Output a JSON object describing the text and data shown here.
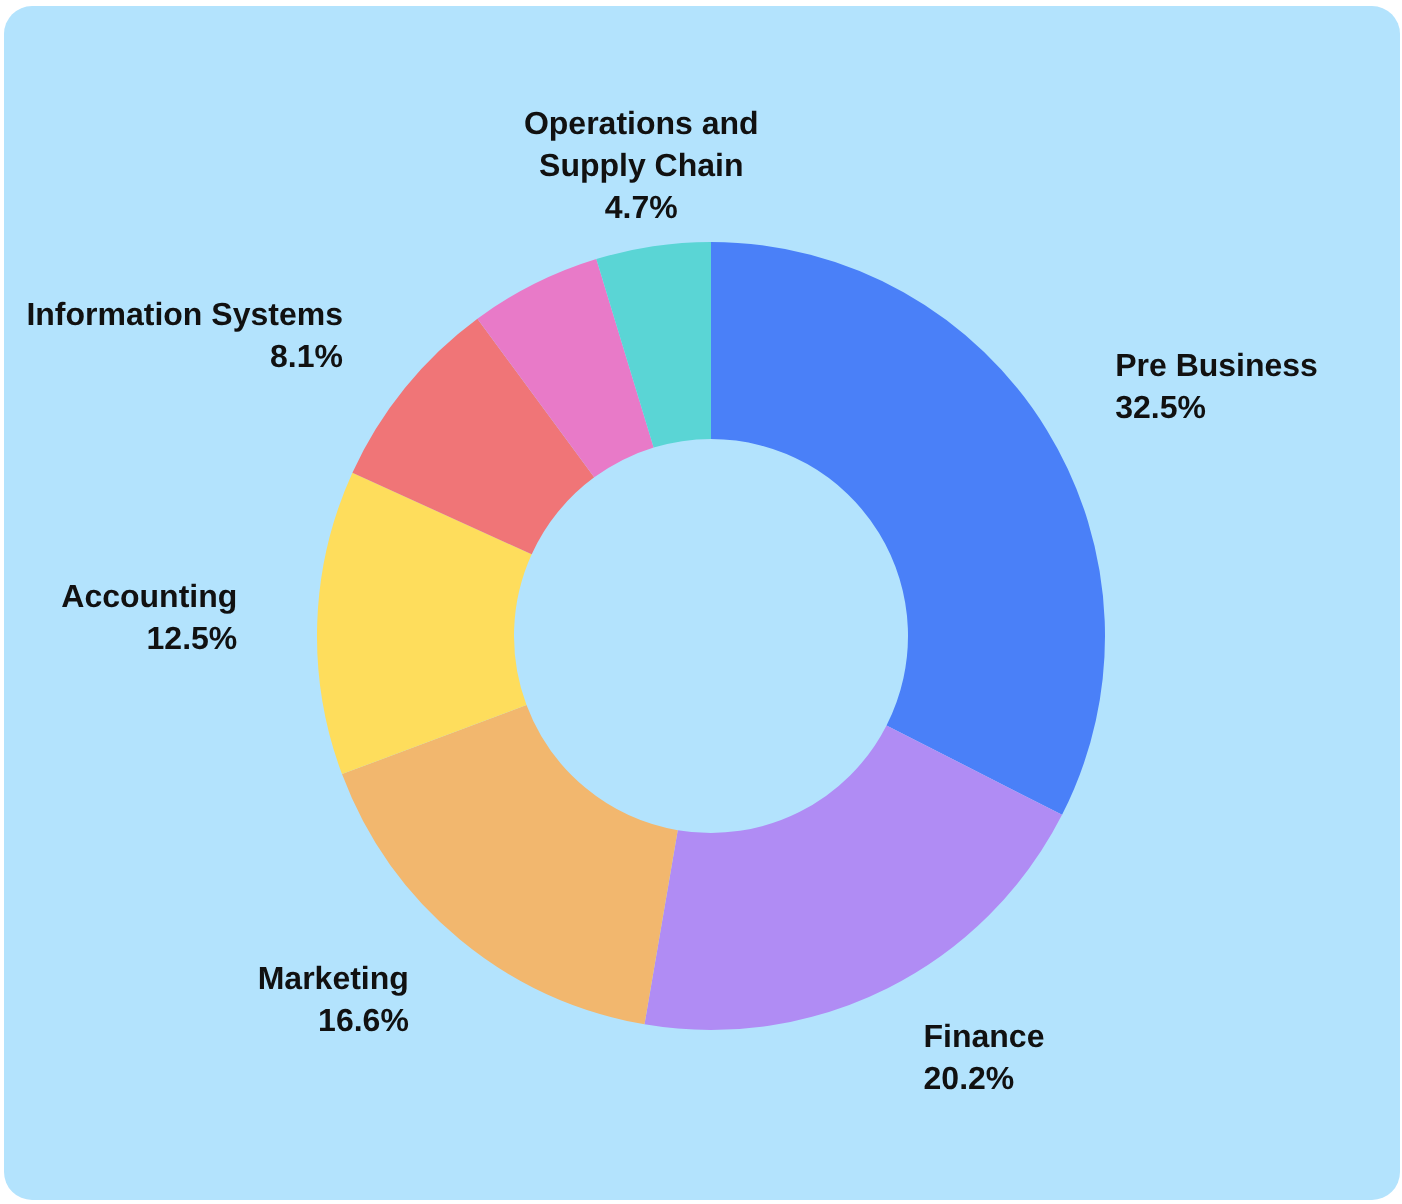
{
  "chart_data": {
    "type": "donut",
    "categories": [
      "Pre Business",
      "Finance",
      "Marketing",
      "Accounting",
      "Information Systems",
      null,
      "Operations and Supply Chain"
    ],
    "values": [
      32.5,
      20.2,
      16.6,
      12.5,
      8.1,
      5.4,
      4.7
    ],
    "value_labels": [
      "32.5%",
      "20.2%",
      "16.6%",
      "12.5%",
      "8.1%",
      null,
      "4.7%"
    ],
    "colors": [
      "#4a80f8",
      "#b08cf4",
      "#f2b76e",
      "#fedd5c",
      "#f07577",
      "#e87ac8",
      "#5ad5d5"
    ],
    "legend": false
  }
}
